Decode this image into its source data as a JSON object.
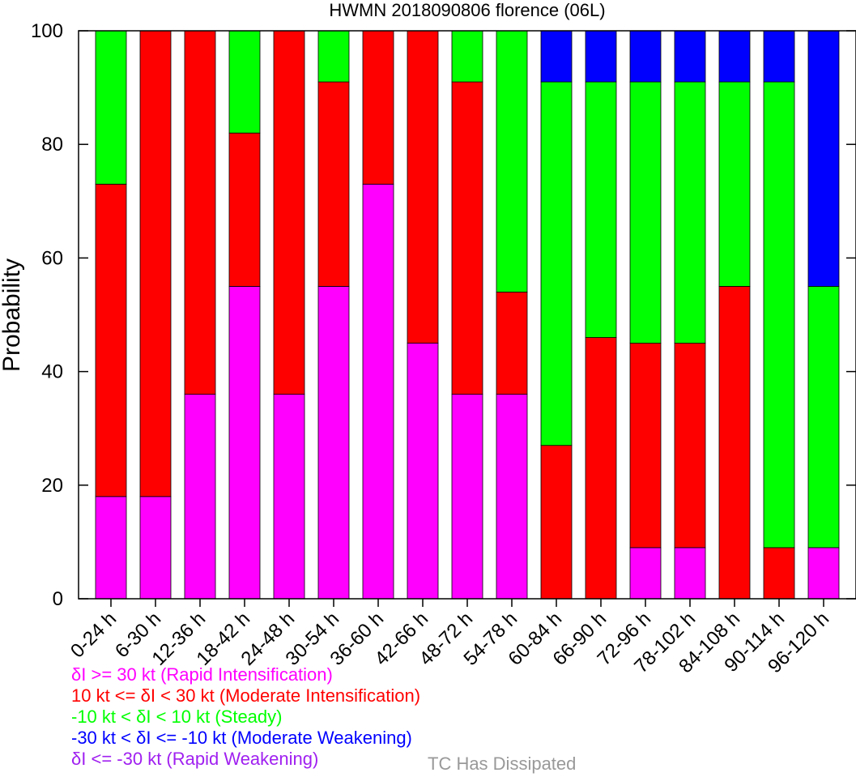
{
  "chart_data": {
    "type": "bar",
    "stacked": true,
    "title": "HWMN 2018090806 florence (06L)",
    "ylabel": "Probability",
    "xlabel": "",
    "ylim": [
      0,
      100
    ],
    "yticks": [
      0,
      20,
      40,
      60,
      80,
      100
    ],
    "grid": false,
    "categories": [
      "0-24 h",
      "6-30 h",
      "12-36 h",
      "18-42 h",
      "24-48 h",
      "30-54 h",
      "36-60 h",
      "42-66 h",
      "48-72 h",
      "54-78 h",
      "60-84 h",
      "66-90 h",
      "72-96 h",
      "78-102 h",
      "84-108 h",
      "90-114 h",
      "96-120 h"
    ],
    "series": [
      {
        "name": "δI >= 30 kt (Rapid Intensification)",
        "color": "#ff00ff",
        "values": [
          18,
          18,
          36,
          55,
          36,
          55,
          73,
          45,
          36,
          36,
          0,
          0,
          9,
          9,
          0,
          0,
          9
        ]
      },
      {
        "name": "10 kt <= δI < 30 kt (Moderate Intensification)",
        "color": "#ff0000",
        "values": [
          55,
          82,
          64,
          27,
          64,
          36,
          27,
          55,
          55,
          18,
          27,
          46,
          36,
          36,
          55,
          9,
          0
        ]
      },
      {
        "name": "-10 kt < δI < 10 kt (Steady)",
        "color": "#00ff00",
        "values": [
          27,
          0,
          0,
          18,
          0,
          9,
          0,
          0,
          9,
          46,
          64,
          45,
          46,
          46,
          36,
          82,
          46
        ]
      },
      {
        "name": "-30 kt < δI <= -10 kt (Moderate Weakening)",
        "color": "#0000ff",
        "values": [
          0,
          0,
          0,
          0,
          0,
          0,
          0,
          0,
          0,
          0,
          9,
          9,
          9,
          9,
          9,
          9,
          45
        ]
      },
      {
        "name": "δI <= -30 kt (Rapid Weakening)",
        "color": "#a020f0",
        "values": [
          0,
          0,
          0,
          0,
          0,
          0,
          0,
          0,
          0,
          0,
          0,
          0,
          0,
          0,
          0,
          0,
          0
        ]
      }
    ],
    "extra_legend": {
      "label": "TC Has Dissipated",
      "color": "#999999"
    },
    "legend_placement": "bottom-left"
  }
}
